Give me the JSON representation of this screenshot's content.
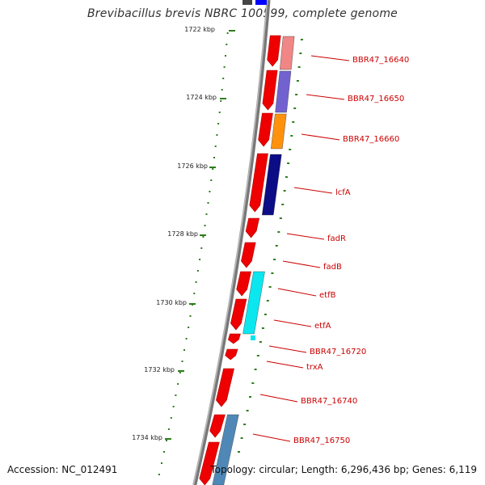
{
  "title": "Brevibacillus brevis NBRC 100599, complete genome",
  "accession": "Accession: NC_012491",
  "topology": "Topology: circular; Length: 6,296,436 bp; Genes: 6,119",
  "colors": {
    "backbone": "#8a8a8a",
    "tick": "#2e7d1e",
    "forward_gene": "#ee0000",
    "label": "#cc0000"
  },
  "scale_labels": [
    "1722 kbp",
    "1724 kbp",
    "1726 kbp",
    "1728 kbp",
    "1730 kbp",
    "1732 kbp",
    "1734 kbp"
  ],
  "gene_labels": [
    "BBR47_16640",
    "BBR47_16650",
    "BBR47_16660",
    "lcfA",
    "fadR",
    "fadB",
    "etfB",
    "etfA",
    "BBR47_16720",
    "trxA",
    "BBR47_16740",
    "BBR47_16750"
  ],
  "feature_colors": [
    "#f08080",
    "#6a5acd",
    "#ff8c00",
    "#000080",
    "#00e5ee",
    "#4682b4"
  ]
}
